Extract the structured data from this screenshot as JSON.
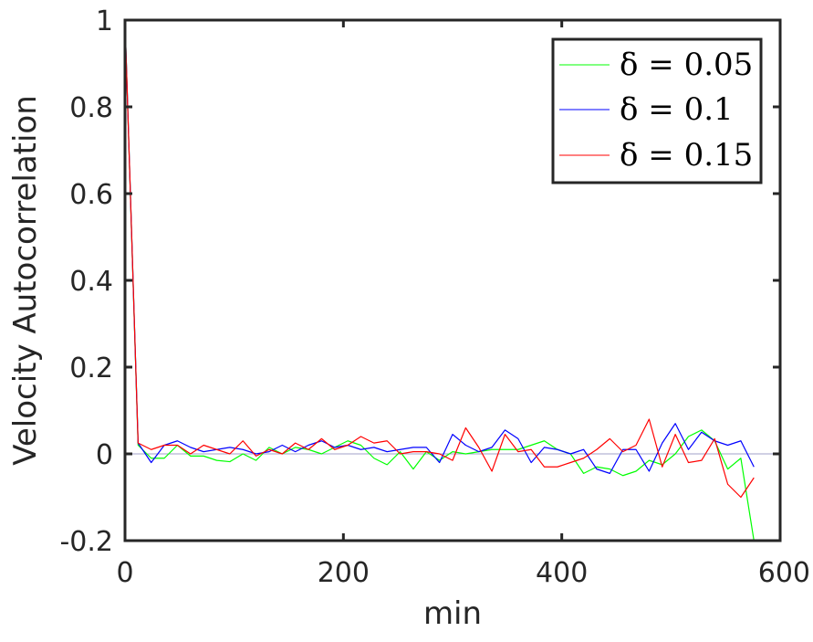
{
  "chart_data": {
    "type": "line",
    "title": "",
    "xlabel": "min",
    "ylabel": "Velocity Autocorrelation",
    "xlim": [
      0,
      600
    ],
    "ylim": [
      -0.2,
      1
    ],
    "xticks": [
      0,
      200,
      400,
      600
    ],
    "xtick_labels": [
      "0",
      "200",
      "400",
      "600"
    ],
    "yticks": [
      -0.2,
      0,
      0.2,
      0.4,
      0.6,
      0.8,
      1
    ],
    "ytick_labels": [
      "-0.2",
      "0",
      "0.2",
      "0.4",
      "0.6",
      "0.8",
      "1"
    ],
    "grid": false,
    "legend_position": "top-right",
    "reference_line": {
      "y": 0,
      "color": "#a0a0c8"
    },
    "x": [
      0,
      12,
      24,
      36,
      48,
      60,
      72,
      84,
      96,
      108,
      120,
      132,
      144,
      156,
      168,
      180,
      192,
      204,
      216,
      228,
      240,
      252,
      264,
      276,
      288,
      300,
      312,
      324,
      336,
      348,
      360,
      372,
      384,
      396,
      408,
      420,
      432,
      444,
      456,
      468,
      480,
      492,
      504,
      516,
      528,
      540,
      552,
      564,
      576
    ],
    "series": [
      {
        "name": "δ = 0.05",
        "color": "#00ff00",
        "values": [
          1.0,
          0.02,
          -0.01,
          -0.01,
          0.02,
          -0.005,
          -0.005,
          -0.015,
          -0.018,
          0.0,
          -0.015,
          0.015,
          0.0,
          0.015,
          0.01,
          0.0,
          0.015,
          0.03,
          0.02,
          -0.01,
          -0.025,
          0.005,
          -0.035,
          0.005,
          -0.015,
          0.005,
          0.0,
          0.005,
          0.01,
          0.01,
          0.01,
          0.02,
          0.03,
          0.01,
          0.0,
          -0.045,
          -0.03,
          -0.035,
          -0.05,
          -0.04,
          -0.015,
          -0.025,
          0.0,
          0.04,
          0.055,
          0.03,
          -0.035,
          -0.01,
          -0.2
        ]
      },
      {
        "name": "δ = 0.1",
        "color": "#0000ff",
        "values": [
          1.0,
          0.025,
          -0.02,
          0.02,
          0.03,
          0.015,
          0.005,
          0.01,
          0.015,
          0.01,
          0.0,
          0.005,
          0.02,
          0.005,
          0.02,
          0.03,
          0.015,
          0.02,
          0.01,
          0.015,
          0.005,
          0.01,
          0.015,
          0.015,
          -0.02,
          0.045,
          0.02,
          0.005,
          0.015,
          0.055,
          0.035,
          -0.02,
          0.015,
          0.01,
          0.0,
          0.01,
          -0.035,
          -0.045,
          0.01,
          0.01,
          -0.04,
          0.025,
          0.07,
          0.01,
          0.05,
          0.03,
          0.02,
          0.03,
          -0.03
        ]
      },
      {
        "name": "δ = 0.15",
        "color": "#ff0000",
        "values": [
          1.0,
          0.025,
          0.01,
          0.02,
          0.02,
          0.0,
          0.02,
          0.01,
          0.0,
          0.03,
          -0.005,
          0.01,
          0.0,
          0.025,
          0.01,
          0.035,
          0.01,
          0.02,
          0.04,
          0.025,
          0.03,
          0.0,
          0.005,
          0.005,
          0.0,
          -0.015,
          0.06,
          0.015,
          -0.04,
          0.045,
          0.005,
          0.01,
          -0.03,
          -0.03,
          -0.02,
          -0.01,
          0.01,
          0.035,
          0.005,
          0.02,
          0.08,
          -0.03,
          0.045,
          -0.02,
          -0.015,
          0.035,
          -0.07,
          -0.1,
          -0.055
        ]
      }
    ]
  }
}
